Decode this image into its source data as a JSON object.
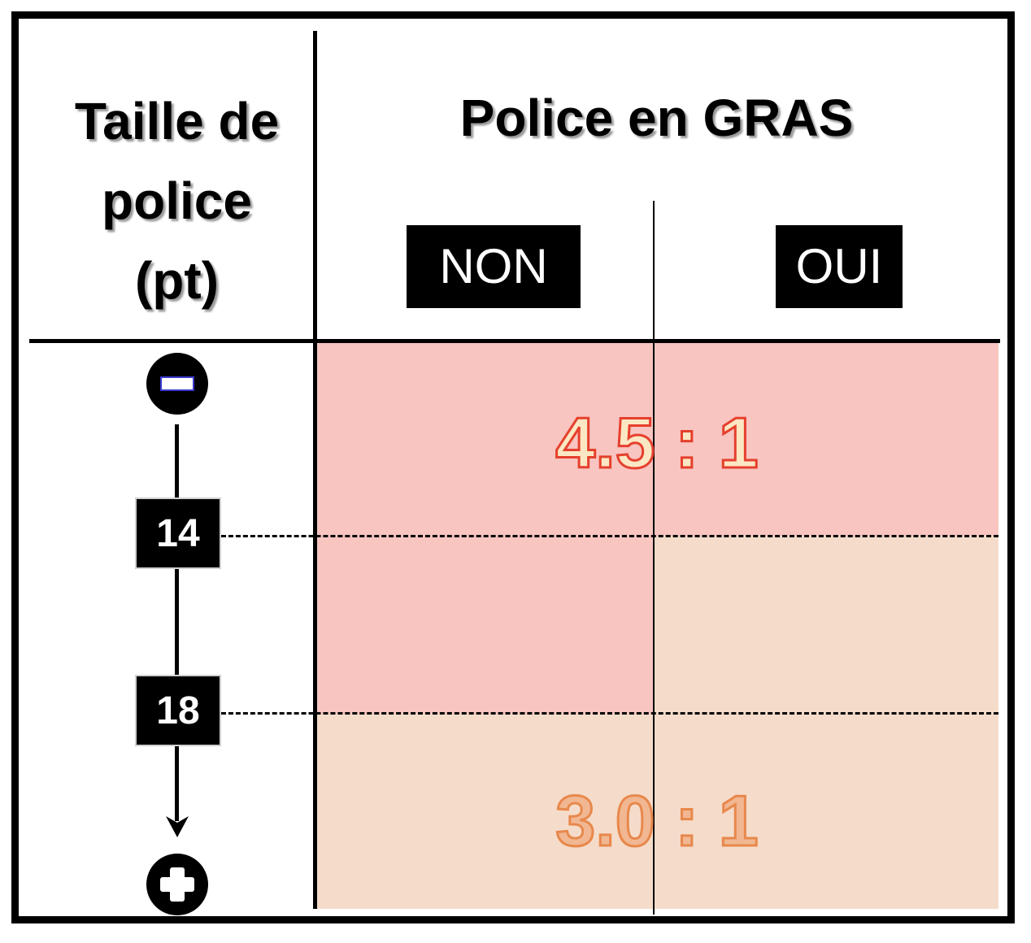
{
  "header": {
    "left_title_lines": [
      "Taille de",
      "police",
      "(pt)"
    ],
    "right_title": "Police en GRAS",
    "columns": [
      "NON",
      "OUI"
    ]
  },
  "scale": {
    "top_icon": "minus-icon",
    "bottom_icon": "plus-icon",
    "markers": [
      "14",
      "18"
    ]
  },
  "ratios": {
    "high": "4.5 : 1",
    "low": "3.0 : 1"
  },
  "colors": {
    "high_zone": "#f8c5c1",
    "low_zone": "#f5dcca",
    "high_text": "#e5402d",
    "low_text": "#e8884c"
  }
}
